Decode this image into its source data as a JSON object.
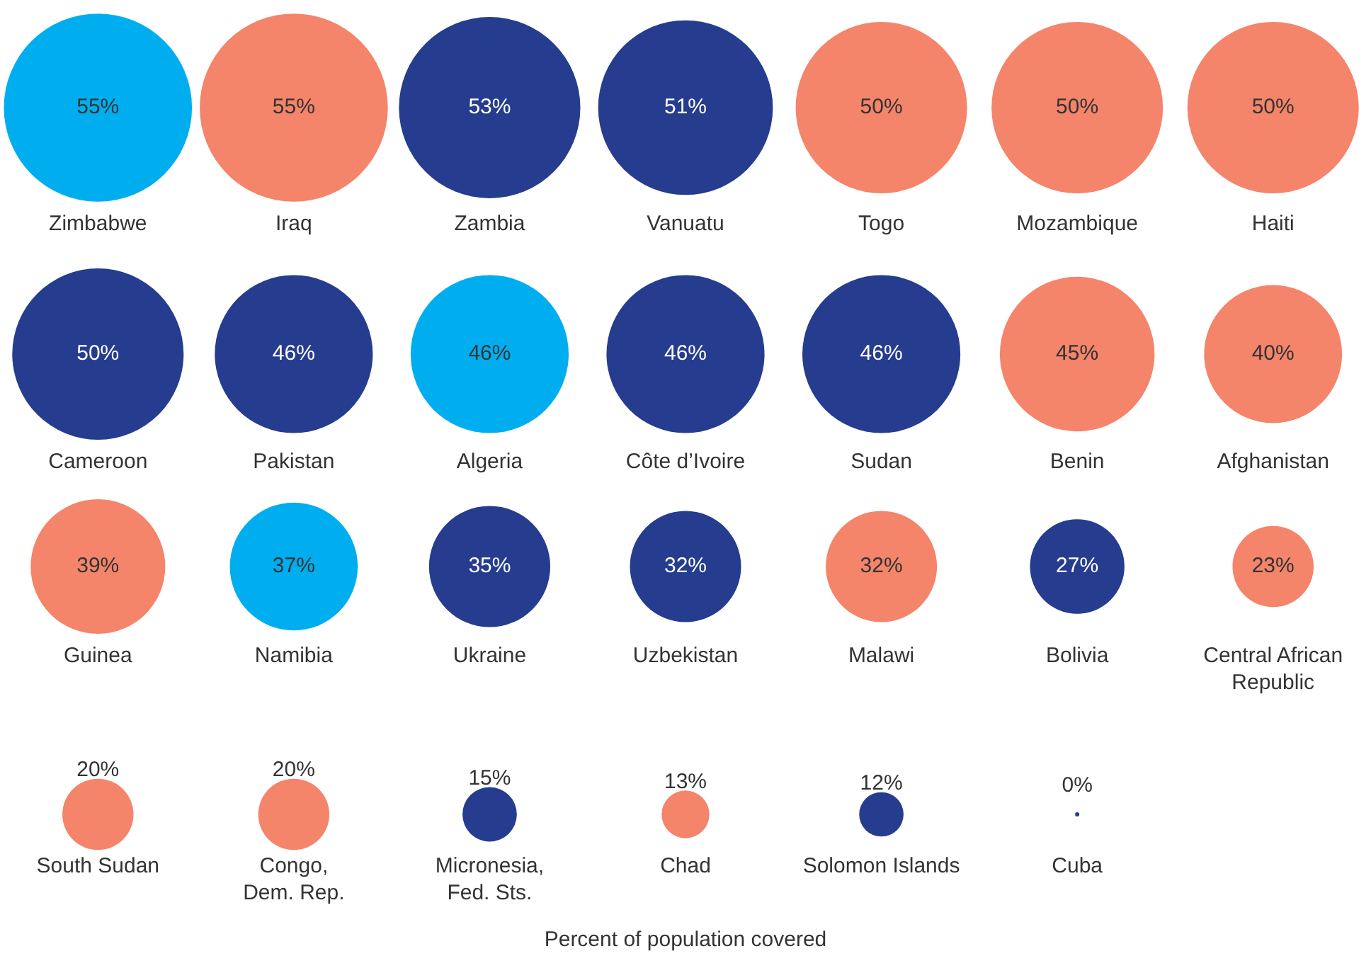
{
  "chart_data": {
    "type": "other",
    "categories": [
      "Zimbabwe",
      "Iraq",
      "Zambia",
      "Vanuatu",
      "Togo",
      "Mozambique",
      "Haiti",
      "Cameroon",
      "Pakistan",
      "Algeria",
      "Côte d’Ivoire",
      "Sudan",
      "Benin",
      "Afghanistan",
      "Guinea",
      "Namibia",
      "Ukraine",
      "Uzbekistan",
      "Malawi",
      "Bolivia",
      "Central African Republic",
      "South Sudan",
      "Congo, Dem. Rep.",
      "Micronesia, Fed. Sts.",
      "Chad",
      "Solomon Islands",
      "Cuba"
    ],
    "values": [
      55,
      55,
      53,
      51,
      50,
      50,
      50,
      50,
      46,
      46,
      46,
      46,
      45,
      40,
      39,
      37,
      35,
      32,
      32,
      27,
      23,
      20,
      20,
      15,
      13,
      12,
      0
    ],
    "value_labels": [
      "55%",
      "55%",
      "53%",
      "51%",
      "50%",
      "50%",
      "50%",
      "50%",
      "46%",
      "46%",
      "46%",
      "46%",
      "45%",
      "40%",
      "39%",
      "37%",
      "35%",
      "32%",
      "32%",
      "27%",
      "23%",
      "20%",
      "20%",
      "15%",
      "13%",
      "12%",
      "0%"
    ],
    "colors": [
      "#00aeef",
      "#f4846a",
      "#253c8f",
      "#253c8f",
      "#f4846a",
      "#f4846a",
      "#f4846a",
      "#253c8f",
      "#253c8f",
      "#00aeef",
      "#253c8f",
      "#253c8f",
      "#f4846a",
      "#f4846a",
      "#f4846a",
      "#00aeef",
      "#253c8f",
      "#253c8f",
      "#f4846a",
      "#253c8f",
      "#f4846a",
      "#f4846a",
      "#f4846a",
      "#253c8f",
      "#f4846a",
      "#253c8f",
      "#253c8f"
    ],
    "annotations": [
      "Percent of population covered"
    ]
  }
}
